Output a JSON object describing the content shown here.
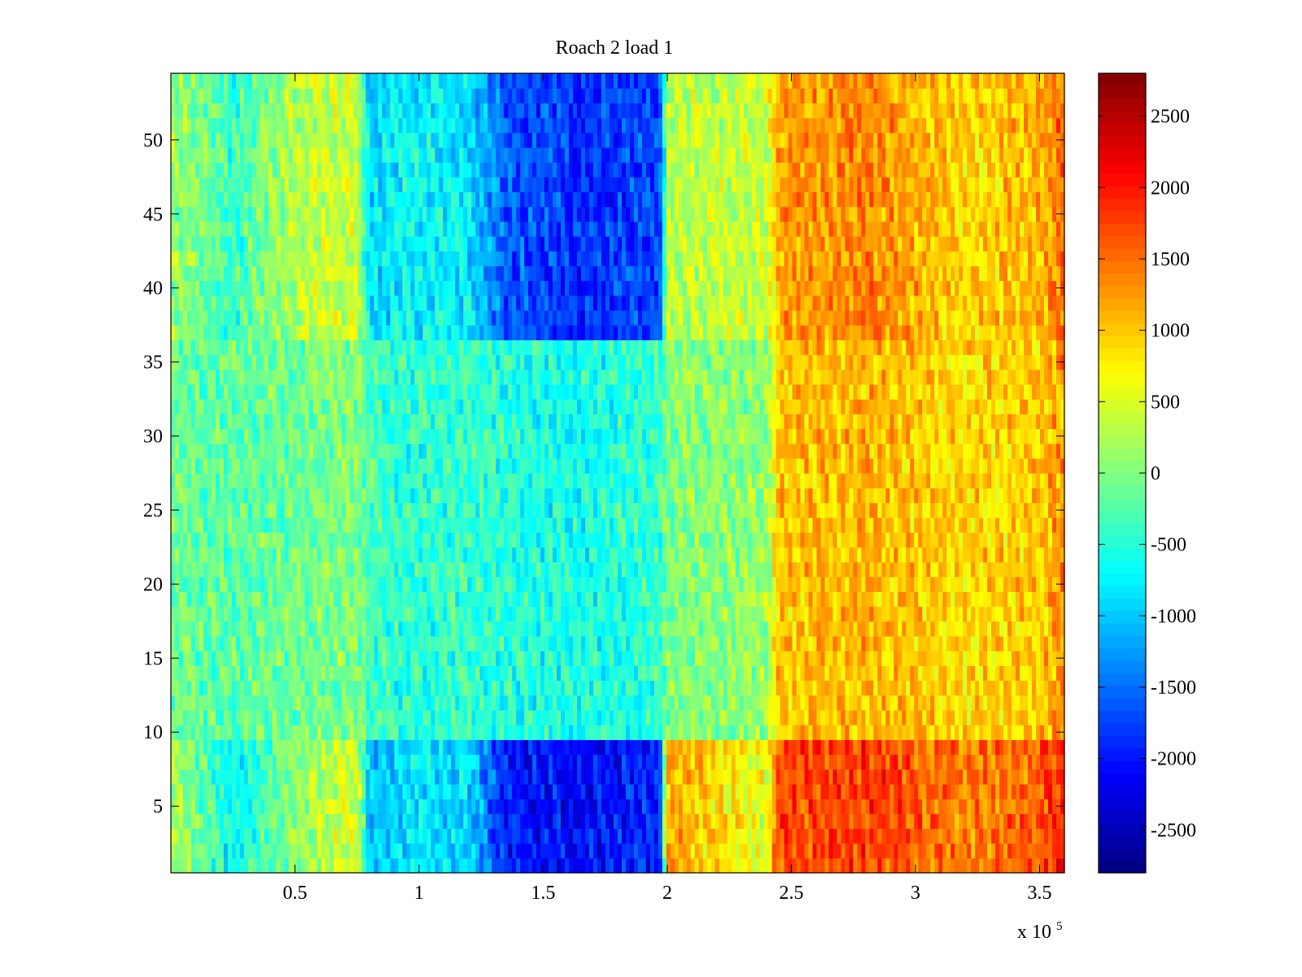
{
  "chart_data": {
    "type": "heatmap",
    "title": "Roach 2 load 1",
    "colormap": "jet",
    "x_multiplier_label": {
      "base": "x 10",
      "exponent": "5"
    },
    "xlim": [
      0,
      360000
    ],
    "ylim": [
      0.5,
      54.5
    ],
    "x_ticks": [
      0.5,
      1,
      1.5,
      2,
      2.5,
      3,
      3.5
    ],
    "x_tick_labels": [
      "0.5",
      "1",
      "1.5",
      "2",
      "2.5",
      "3",
      "3.5"
    ],
    "y_ticks": [
      5,
      10,
      15,
      20,
      25,
      30,
      35,
      40,
      45,
      50
    ],
    "y_tick_labels": [
      "5",
      "10",
      "15",
      "20",
      "25",
      "30",
      "35",
      "40",
      "45",
      "50"
    ],
    "rows": 54,
    "clim": [
      -2800,
      2800
    ],
    "colorbar_ticks": [
      2500,
      2000,
      1500,
      1000,
      500,
      0,
      -500,
      -1000,
      -1500,
      -2000,
      -2500
    ],
    "colorbar_tick_labels": [
      "2500",
      "2000",
      "1500",
      "1000",
      "500",
      "0",
      "-500",
      "-1000",
      "-1500",
      "-2000",
      "-2500"
    ],
    "approx_row_profile_x": [
      0,
      25000,
      50000,
      75000,
      80000,
      95000,
      120000,
      135000,
      165000,
      197000,
      200000,
      240000,
      245000,
      280000,
      320000,
      350000,
      360000
    ],
    "approx_row_profiles": {
      "low_rows_1_9": [
        300,
        -700,
        100,
        500,
        -1100,
        -800,
        -900,
        -2000,
        -2100,
        -1900,
        1200,
        500,
        1700,
        1800,
        1400,
        1600,
        2000
      ],
      "middle_rows_10_36": [
        -100,
        -200,
        -100,
        0,
        -300,
        -500,
        -400,
        -500,
        -600,
        -400,
        0,
        100,
        1000,
        1100,
        900,
        1000,
        1300
      ],
      "high_rows_37_54": [
        200,
        -400,
        300,
        400,
        -900,
        -700,
        -800,
        -1600,
        -1900,
        -1700,
        300,
        400,
        1200,
        1400,
        900,
        1100,
        1600
      ]
    }
  }
}
